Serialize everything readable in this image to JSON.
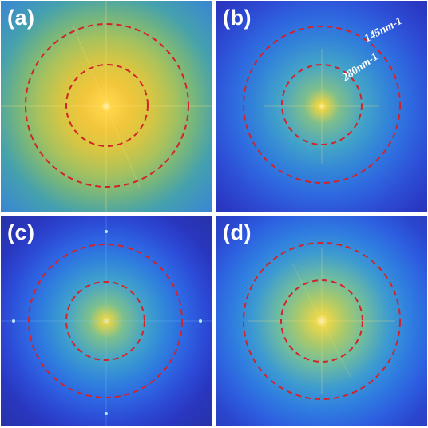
{
  "panels": [
    {
      "id": "a",
      "label": "(a)"
    },
    {
      "id": "b",
      "label": "(b)",
      "annotations": {
        "outer": "145nm-1",
        "inner": "280nm-1"
      }
    },
    {
      "id": "c",
      "label": "(c)"
    },
    {
      "id": "d",
      "label": "(d)"
    }
  ],
  "colors": {
    "circle": "#d2232a",
    "label_text": "#ffffff",
    "background": "#2a2f9f"
  },
  "icons": []
}
